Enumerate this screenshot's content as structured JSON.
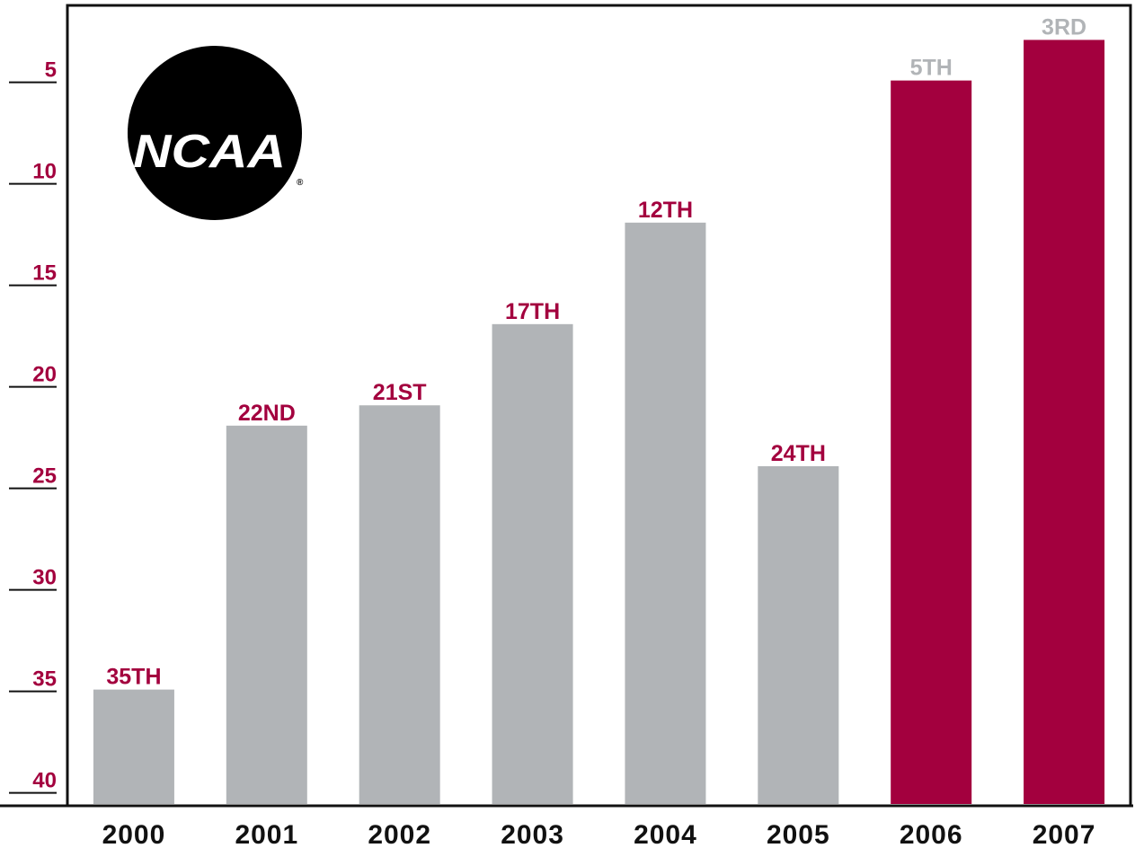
{
  "logo": {
    "text": "NCAA",
    "registered": "®"
  },
  "colors": {
    "gray_bar": "#b1b4b7",
    "maroon_bar": "#a3003e",
    "maroon_text": "#a3003e",
    "gray_text": "#b1b4b7",
    "axis": "#111111",
    "tick_text": "#a3003e"
  },
  "chart_data": {
    "type": "bar",
    "title": "",
    "xlabel": "",
    "ylabel": "",
    "y_inverted": true,
    "ylim": [
      40,
      0
    ],
    "y_ticks": [
      5,
      10,
      15,
      20,
      25,
      30,
      35,
      40
    ],
    "categories": [
      "2000",
      "2001",
      "2002",
      "2003",
      "2004",
      "2005",
      "2006",
      "2007"
    ],
    "values": [
      35,
      22,
      21,
      17,
      12,
      24,
      5,
      3
    ],
    "data_labels": [
      "35TH",
      "22ND",
      "21ST",
      "17TH",
      "12TH",
      "24TH",
      "5TH",
      "3RD"
    ],
    "highlighted": [
      false,
      false,
      false,
      false,
      false,
      false,
      true,
      true
    ],
    "grid": false,
    "legend": "none"
  }
}
